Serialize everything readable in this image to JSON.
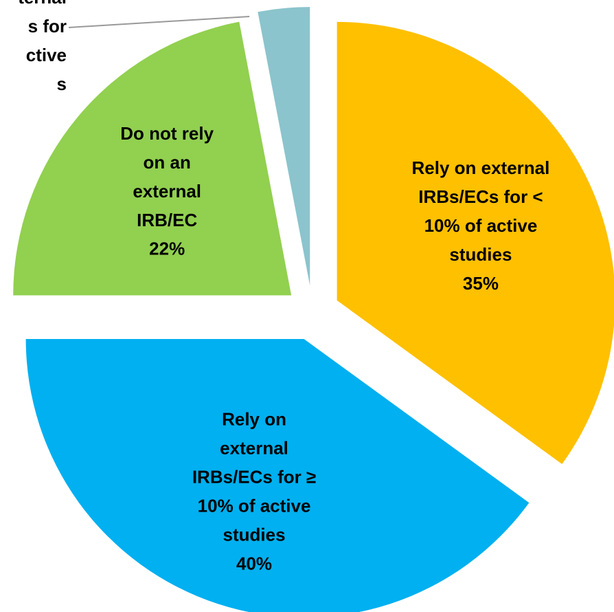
{
  "chart_data": {
    "type": "pie",
    "categories": [
      "Rely on external\nIRBs/ECs for <\n10% of active\nstudies",
      "Rely on\nexternal\nIRBs/ECs for ≥\n10% of active\nstudies",
      "Do not rely\non an\nexternal\nIRB/EC",
      "ternal\ns for\nctive\ns"
    ],
    "values": [
      35,
      40,
      22,
      3
    ],
    "value_labels": [
      "35%",
      "40%",
      "22%",
      null
    ],
    "colors": [
      "#FFC000",
      "#00B0F0",
      "#92D050",
      "#8BC4CC"
    ]
  }
}
